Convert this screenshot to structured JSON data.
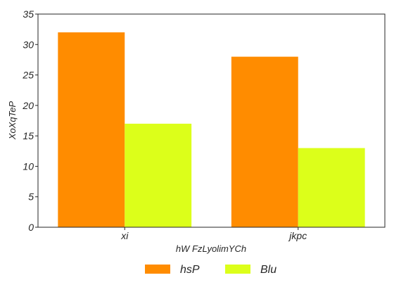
{
  "chart_data": {
    "type": "bar",
    "title": "",
    "xlabel": "hW FzLyolimYCh",
    "ylabel": "XoXqTeP",
    "categories": [
      "xi",
      "jkpc"
    ],
    "series": [
      {
        "name": "hsP",
        "values": [
          32,
          28
        ],
        "color": "#ff8c00"
      },
      {
        "name": "Blu",
        "values": [
          17,
          13
        ],
        "color": "#dcff1a"
      }
    ],
    "ylim": [
      0,
      35
    ],
    "yticks": [
      0,
      5,
      10,
      15,
      20,
      25,
      30,
      35
    ],
    "grid": false,
    "legend_position": "bottom-center"
  }
}
